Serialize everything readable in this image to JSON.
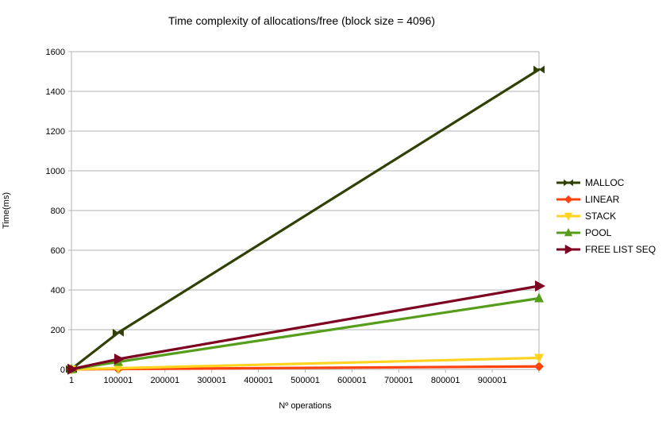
{
  "chart_data": {
    "type": "line",
    "title": "Time complexity of allocations/free (block size = 4096)",
    "xlabel": "Nº operations",
    "ylabel": "Time(ms)",
    "x": [
      1,
      100001,
      1000001
    ],
    "xlim": [
      1,
      1000001
    ],
    "ylim": [
      0,
      1600
    ],
    "y_tick_step": 200,
    "y_tick_labels": [
      "0",
      "200",
      "400",
      "600",
      "800",
      "1000",
      "1200",
      "1400",
      "1600"
    ],
    "x_tick_values": [
      1,
      100001,
      200001,
      300001,
      400001,
      500001,
      600001,
      700001,
      800001,
      900001
    ],
    "x_tick_labels": [
      "1",
      "100001",
      "200001",
      "300001",
      "400001",
      "500001",
      "600001",
      "700001",
      "800001",
      "900001"
    ],
    "grid": "horizontal",
    "legend_position": "right",
    "colors": {
      "grid": "#b3b3b3",
      "axis": "#b3b3b3",
      "text": "#000000",
      "background": "#ffffff"
    },
    "series": [
      {
        "name": "MALLOC",
        "color": "#314004",
        "marker": "bowtie",
        "values": [
          2,
          185,
          1510
        ]
      },
      {
        "name": "LINEAR",
        "color": "#FF420E",
        "marker": "diamond",
        "values": [
          0,
          2,
          15
        ]
      },
      {
        "name": "STACK",
        "color": "#FFD320",
        "marker": "triangle-down",
        "values": [
          0,
          6,
          58
        ]
      },
      {
        "name": "POOL",
        "color": "#579D1C",
        "marker": "triangle-up",
        "values": [
          1,
          38,
          358
        ]
      },
      {
        "name": "FREE LIST SEQ",
        "color": "#7E0021",
        "marker": "triangle-right",
        "values": [
          1,
          52,
          420
        ]
      }
    ]
  }
}
